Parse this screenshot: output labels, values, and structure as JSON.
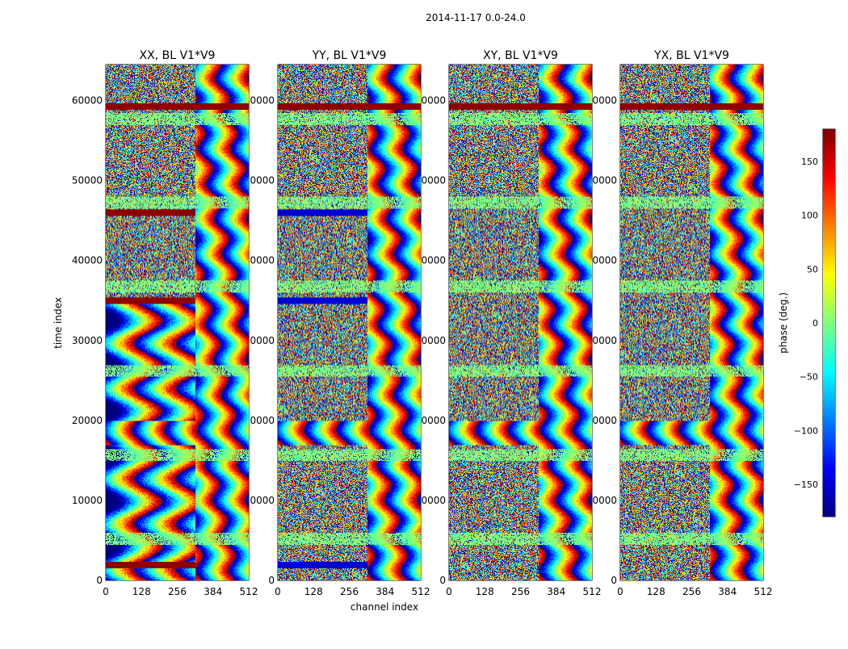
{
  "chart_data": {
    "type": "heatmap",
    "suptitle": "2014-11-17 0.0-24.0",
    "xlabel": "channel index",
    "ylabel": "time index",
    "xlim": [
      0,
      512
    ],
    "ylim": [
      0,
      64500
    ],
    "x_ticks": [
      0,
      128,
      256,
      384,
      512
    ],
    "y_ticks": [
      0,
      10000,
      20000,
      30000,
      40000,
      50000,
      60000
    ],
    "colormap": "jet",
    "panels": [
      {
        "title": "XX, BL V1*V9",
        "polarization": "XX"
      },
      {
        "title": "YY, BL V1*V9",
        "polarization": "YY"
      },
      {
        "title": "XY, BL V1*V9",
        "polarization": "XY"
      },
      {
        "title": "YX, BL V1*V9",
        "polarization": "YX"
      }
    ],
    "colorbar": {
      "label": "phase (deg.)",
      "range": [
        -180,
        180
      ],
      "ticks": [
        -150,
        -100,
        -50,
        0,
        50,
        100,
        150
      ],
      "tick_labels": [
        "−150",
        "−100",
        "−50",
        "0",
        "50",
        "100",
        "150"
      ]
    }
  }
}
